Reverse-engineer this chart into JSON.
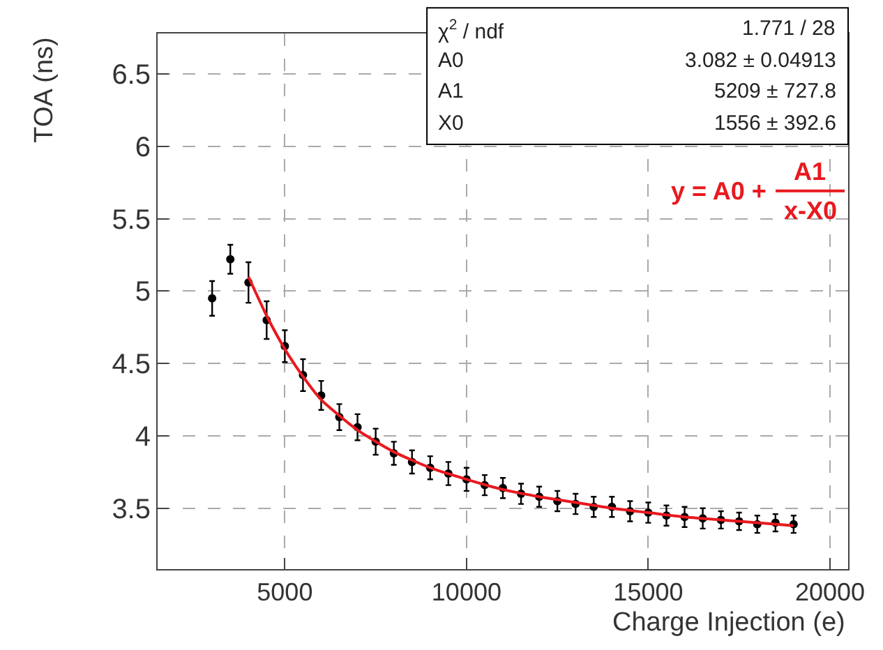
{
  "chart_data": {
    "type": "scatter",
    "xlabel": "Charge Injection (e)",
    "ylabel": "TOA (ns)",
    "xlim": [
      1500,
      20500
    ],
    "xticks": [
      5000,
      10000,
      15000,
      20000
    ],
    "ylim": [
      3.08,
      6.78
    ],
    "yticks": [
      3.5,
      4,
      4.5,
      5,
      5.5,
      6,
      6.5
    ],
    "grid": true,
    "marker": "circle",
    "series": [
      {
        "color": "#000000",
        "x": [
          3000,
          3500,
          4000,
          4500,
          5000,
          5500,
          6000,
          6500,
          7000,
          7500,
          8000,
          8500,
          9000,
          9500,
          10000,
          10500,
          11000,
          11500,
          12000,
          12500,
          13000,
          13500,
          14000,
          14500,
          15000,
          15500,
          16000,
          16500,
          17000,
          17500,
          18000,
          18500,
          19000
        ],
        "values": [
          4.95,
          5.22,
          5.06,
          4.8,
          4.62,
          4.42,
          4.28,
          4.13,
          4.06,
          3.96,
          3.88,
          3.82,
          3.78,
          3.74,
          3.7,
          3.66,
          3.64,
          3.6,
          3.58,
          3.55,
          3.53,
          3.51,
          3.51,
          3.48,
          3.47,
          3.45,
          3.44,
          3.43,
          3.42,
          3.41,
          3.39,
          3.4,
          3.39
        ],
        "errors": [
          0.12,
          0.1,
          0.14,
          0.13,
          0.11,
          0.11,
          0.1,
          0.09,
          0.09,
          0.09,
          0.08,
          0.08,
          0.08,
          0.08,
          0.08,
          0.07,
          0.07,
          0.07,
          0.07,
          0.07,
          0.07,
          0.07,
          0.07,
          0.07,
          0.07,
          0.07,
          0.07,
          0.07,
          0.06,
          0.06,
          0.06,
          0.06,
          0.06
        ]
      },
      {
        "type": "line",
        "marker": "none",
        "color": "#e8191f",
        "x": [
          4000,
          4500,
          5000,
          5500,
          6000,
          7000,
          8000,
          9000,
          10000,
          11000,
          12000,
          13000,
          14000,
          15000,
          16000,
          17000,
          18000,
          19000
        ],
        "values": [
          5.1,
          4.83,
          4.6,
          4.41,
          4.25,
          4.04,
          3.89,
          3.78,
          3.7,
          3.63,
          3.58,
          3.54,
          3.5,
          3.47,
          3.44,
          3.42,
          3.4,
          3.38
        ]
      }
    ],
    "annotations": [
      "χ$^{2}$ / ndf",
      "1.771 / 28",
      "A0",
      "3.082 ± 0.04913",
      "A1",
      "5209 ± 727.8",
      "X0",
      "1556 ± 392.6",
      "y = A0 +",
      "A1",
      "x-X0"
    ]
  }
}
